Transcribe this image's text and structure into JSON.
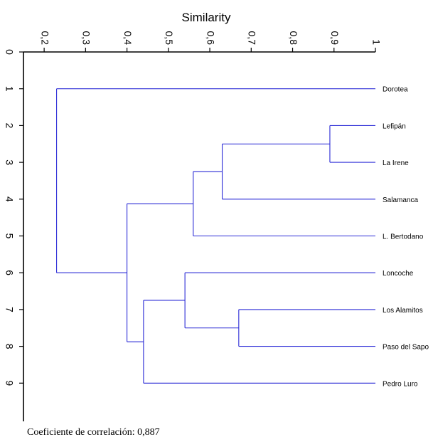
{
  "chart_data": {
    "type": "dendrogram",
    "title": "Similarity",
    "x_ticks": [
      "0,2",
      "0,3",
      "0,4",
      "0,5",
      "0,6",
      "0,7",
      "0,8",
      "0,9",
      "1"
    ],
    "x_tick_values": [
      0.2,
      0.3,
      0.4,
      0.5,
      0.6,
      0.7,
      0.8,
      0.9,
      1.0
    ],
    "x_range": [
      0.15,
      1.0
    ],
    "y_ticks": [
      "0",
      "1",
      "2",
      "3",
      "4",
      "5",
      "6",
      "7",
      "8",
      "9"
    ],
    "y_range": [
      0,
      10.4
    ],
    "leaves": [
      {
        "name": "Dorotea",
        "position": 1
      },
      {
        "name": "Lefipán",
        "position": 2
      },
      {
        "name": "La Irene",
        "position": 3
      },
      {
        "name": "Salamanca",
        "position": 4
      },
      {
        "name": "L. Bertodano",
        "position": 5
      },
      {
        "name": "Loncoche",
        "position": 6
      },
      {
        "name": "Los Alamitos",
        "position": 7
      },
      {
        "name": "Paso del Sapo",
        "position": 8
      },
      {
        "name": "Pedro Luro",
        "position": 9
      }
    ],
    "merges": [
      {
        "id": "m1",
        "children": [
          "Lefipán",
          "La Irene"
        ],
        "similarity": 0.89
      },
      {
        "id": "m2",
        "children": [
          "m1",
          "Salamanca"
        ],
        "similarity": 0.63
      },
      {
        "id": "m3",
        "children": [
          "m2",
          "L. Bertodano"
        ],
        "similarity": 0.56
      },
      {
        "id": "m4",
        "children": [
          "Los Alamitos",
          "Paso del Sapo"
        ],
        "similarity": 0.67
      },
      {
        "id": "m5",
        "children": [
          "Loncoche",
          "m4"
        ],
        "similarity": 0.54
      },
      {
        "id": "m6",
        "children": [
          "m5",
          "Pedro Luro"
        ],
        "similarity": 0.44
      },
      {
        "id": "m7",
        "children": [
          "m3",
          "m6"
        ],
        "similarity": 0.4
      },
      {
        "id": "m8",
        "children": [
          "Dorotea",
          "m7"
        ],
        "similarity": 0.23
      }
    ],
    "line_color": "#2b2bd6"
  },
  "footnote": "Coeficiente de correlación: 0,887"
}
